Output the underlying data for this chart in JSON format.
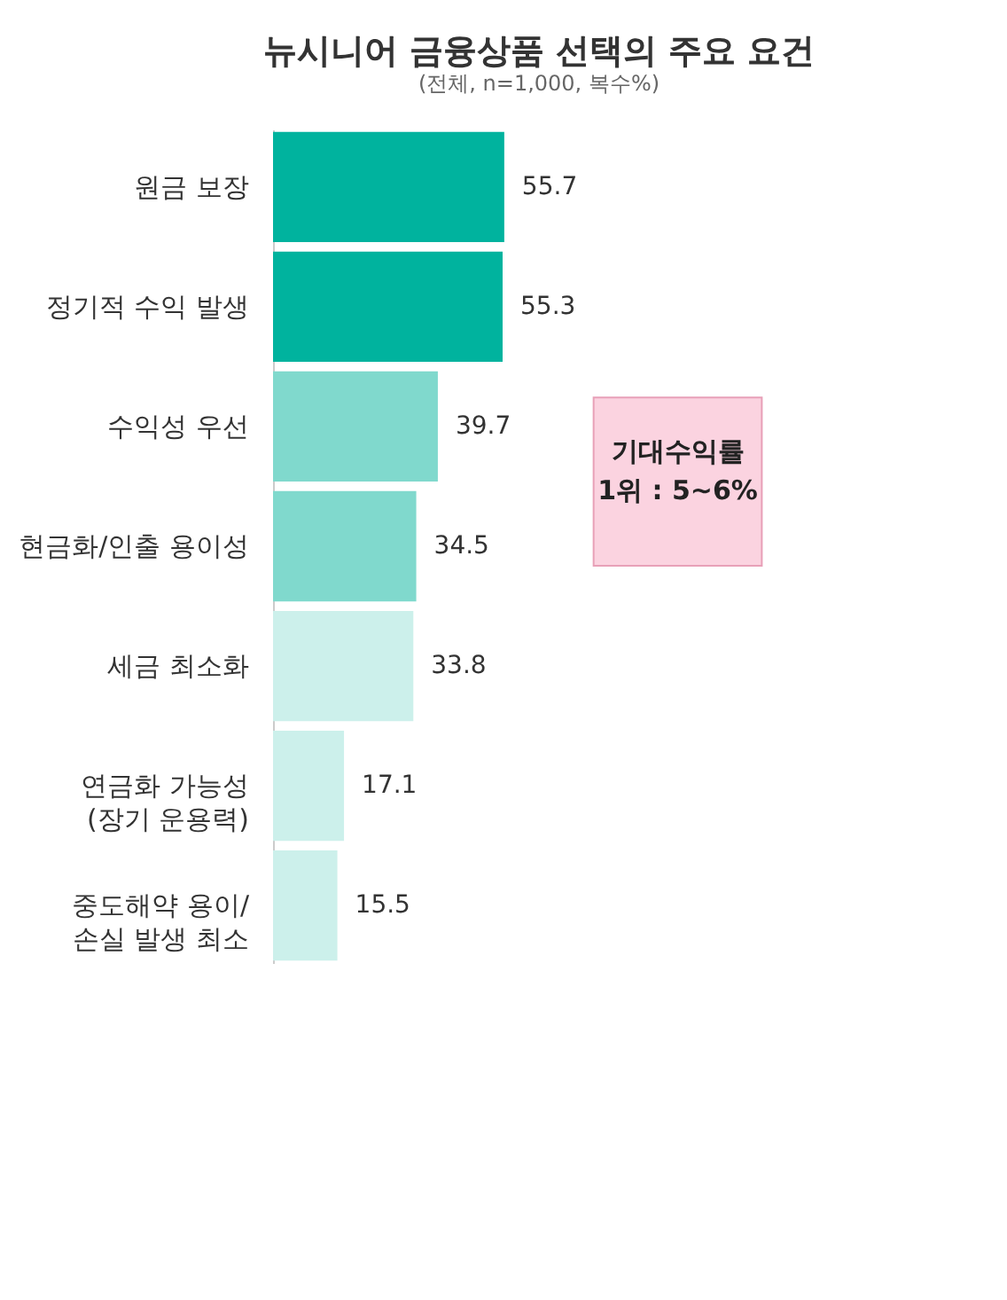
{
  "chart_data": {
    "type": "bar",
    "orientation": "horizontal",
    "title": "뉴시니어 금융상품 선택의 주요 요건",
    "subtitle": "(전체, n=1,000, 복수%)",
    "categories": [
      "원금 보장",
      "정기적 수익 발생",
      "수익성 우선",
      "현금화/인출 용이성",
      "세금 최소화",
      "연금화 가능성\n(장기 운용력)",
      "중도해약 용이/\n손실 발생 최소"
    ],
    "values": [
      55.7,
      55.3,
      39.7,
      34.5,
      33.8,
      17.1,
      15.5
    ],
    "colors": [
      "#00b39e",
      "#00b39e",
      "#80d9cd",
      "#80d9cd",
      "#ccf0eb",
      "#ccf0eb",
      "#ccf0eb"
    ],
    "data_labels": true,
    "grid": false,
    "annotations": [
      "기대수익률\n1위 : 5~6%"
    ]
  }
}
